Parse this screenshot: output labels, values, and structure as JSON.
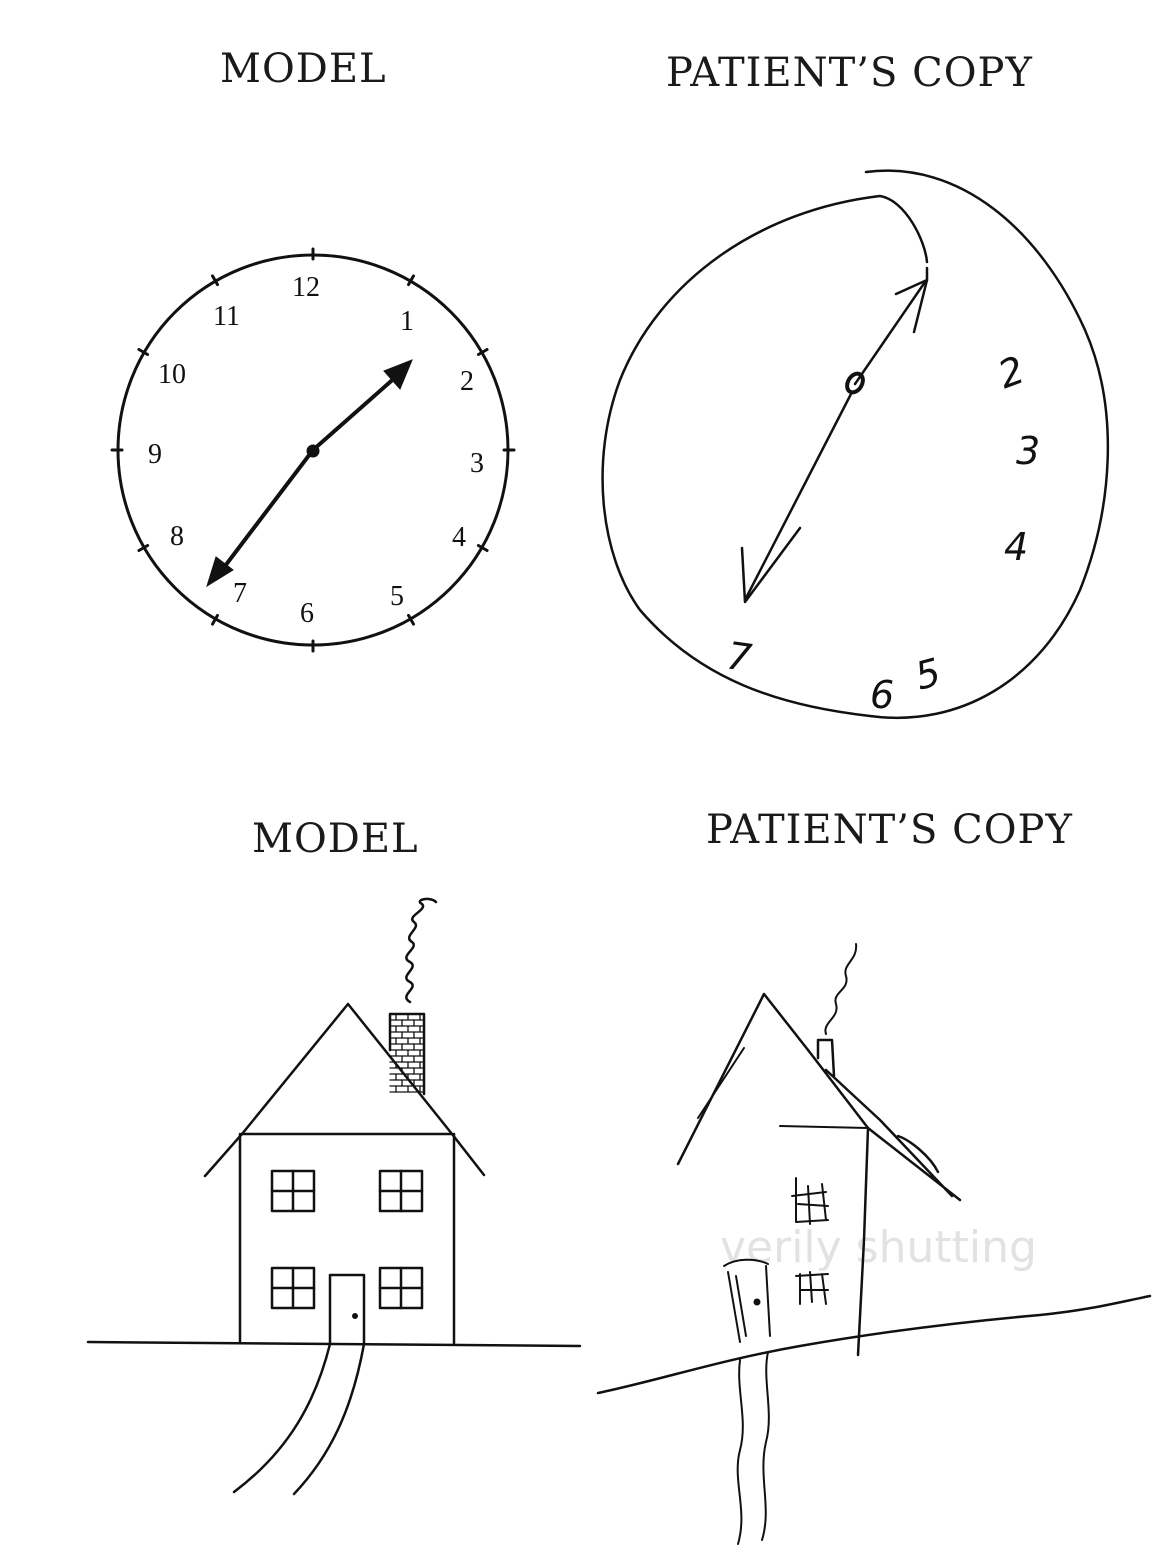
{
  "headings": {
    "top_left": "MODEL",
    "top_right": "PATIENT’S COPY",
    "bottom_left": "MODEL",
    "bottom_right": "PATIENT’S COPY"
  },
  "model_clock": {
    "numbers": [
      "12",
      "1",
      "2",
      "3",
      "4",
      "5",
      "6",
      "7",
      "8",
      "9",
      "10",
      "11"
    ]
  },
  "patient_clock": {
    "numbers": [
      "2",
      "3",
      "4",
      "5",
      "6",
      "7"
    ]
  },
  "bleed_through_text": "verily shutting"
}
